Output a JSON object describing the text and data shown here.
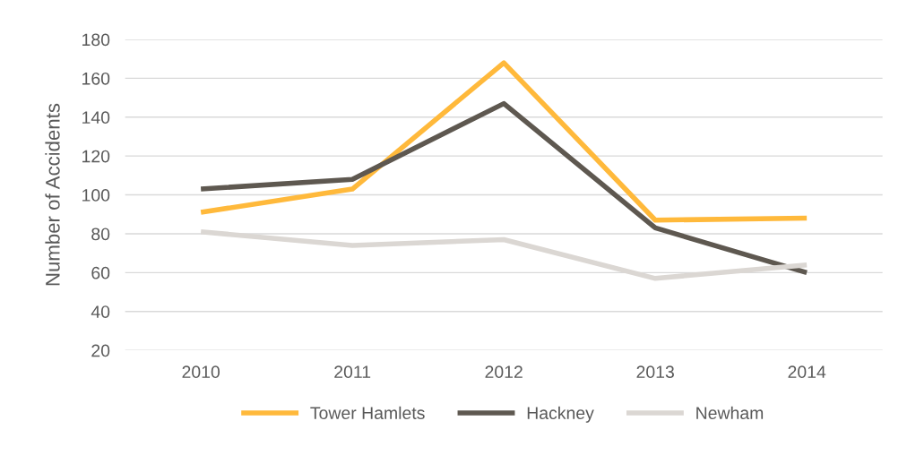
{
  "chart_data": {
    "type": "line",
    "ylabel": "Number of Accidents",
    "categories": [
      "2010",
      "2011",
      "2012",
      "2013",
      "2014"
    ],
    "series": [
      {
        "name": "Tower Hamlets",
        "color": "#ffb93b",
        "values": [
          91,
          103,
          168,
          87,
          88
        ]
      },
      {
        "name": "Hackney",
        "color": "#5e5850",
        "values": [
          103,
          108,
          147,
          83,
          60
        ]
      },
      {
        "name": "Newham",
        "color": "#dbd7d3",
        "values": [
          81,
          74,
          77,
          57,
          64
        ]
      }
    ],
    "ylim": [
      20,
      180
    ],
    "yticks": [
      20,
      40,
      60,
      80,
      100,
      120,
      140,
      160,
      180
    ],
    "grid": "y",
    "legend": "bottom",
    "marker": "none",
    "line_style": "solid"
  }
}
